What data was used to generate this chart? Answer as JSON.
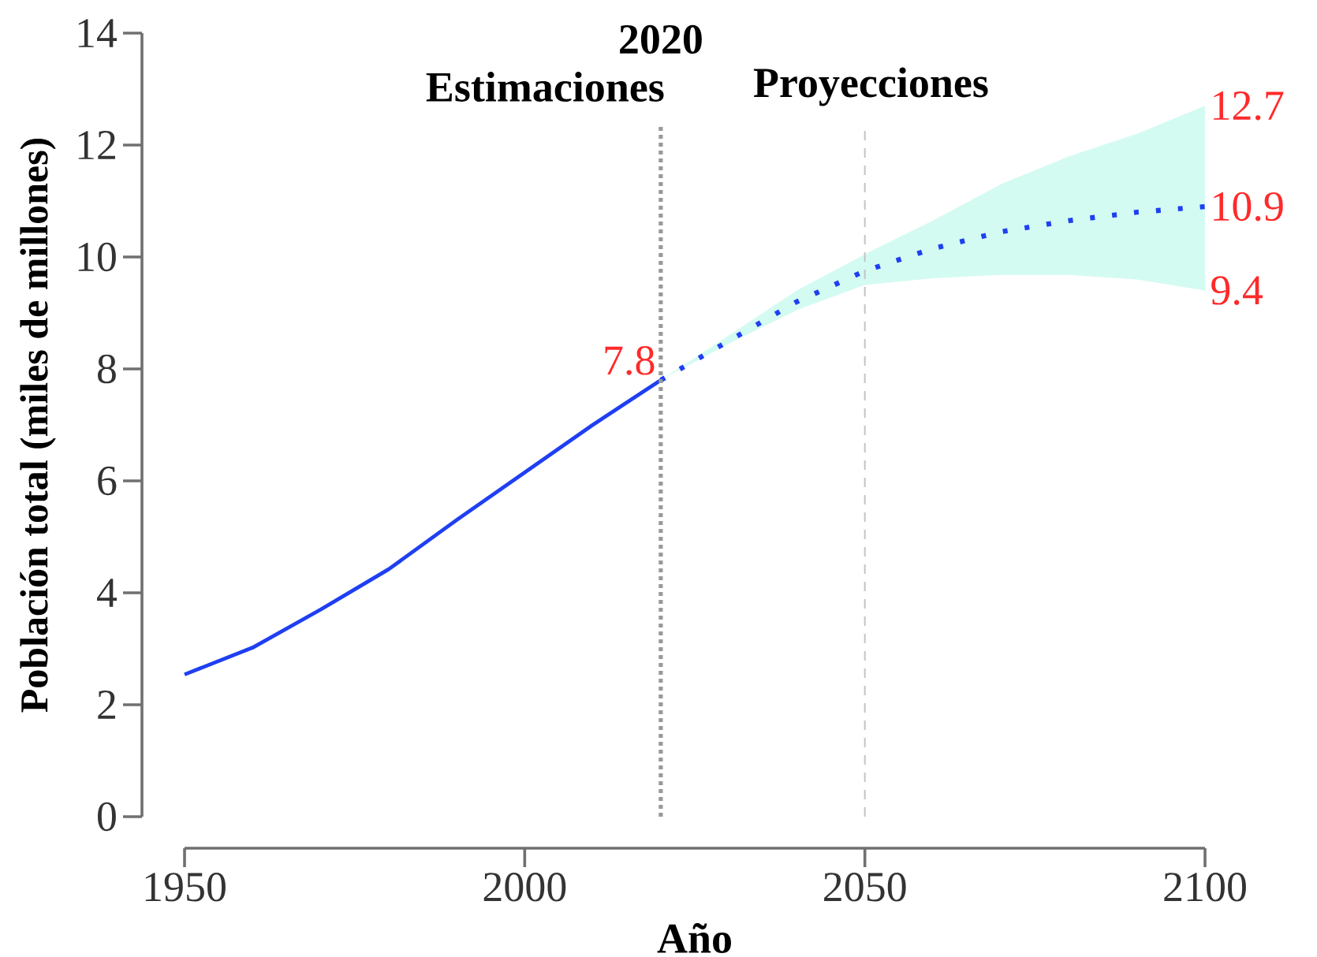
{
  "chart_data": {
    "type": "line",
    "xlabel": "Año",
    "ylabel": "Población total (miles de millones)",
    "xlim": [
      1950,
      2100
    ],
    "xticks": [
      1950,
      2000,
      2050,
      2100
    ],
    "ylim": [
      0,
      14
    ],
    "yticks": [
      0,
      2,
      4,
      6,
      8,
      10,
      12,
      14
    ],
    "marker": "none",
    "series": [
      {
        "color": "#1f3ff2",
        "line_style": "solid",
        "x": [
          1950,
          1960,
          1970,
          1980,
          1990,
          2000,
          2010,
          2020
        ],
        "values": [
          2.54,
          3.02,
          3.7,
          4.42,
          5.3,
          6.15,
          7.0,
          7.8
        ],
        "value_labels": [
          null,
          null,
          null,
          null,
          null,
          null,
          null,
          "7.8"
        ]
      },
      {
        "color": "#1f3ff2",
        "line_style": "dotted",
        "x": [
          2020,
          2030,
          2040,
          2050,
          2060,
          2070,
          2080,
          2090,
          2100
        ],
        "values": [
          7.8,
          8.5,
          9.2,
          9.75,
          10.15,
          10.45,
          10.65,
          10.8,
          10.9
        ],
        "lower": [
          7.8,
          8.45,
          9.05,
          9.5,
          9.62,
          9.68,
          9.68,
          9.6,
          9.4
        ],
        "upper": [
          7.8,
          8.6,
          9.4,
          10.05,
          10.65,
          11.3,
          11.8,
          12.2,
          12.7
        ],
        "value_labels": [
          null,
          null,
          null,
          null,
          null,
          null,
          null,
          null,
          "10.9"
        ]
      }
    ],
    "ref_lines": [
      {
        "axis": "x",
        "value": 2020,
        "label": "2020",
        "color": "#999999",
        "line_style": "dotted"
      },
      {
        "axis": "x",
        "value": 2050,
        "color": "#c4c4c4",
        "line_style": "dashed"
      }
    ],
    "annotations": [
      "Estimaciones",
      "Proyecciones",
      {
        "text": "12.7",
        "x": 2100,
        "y": 12.7
      },
      {
        "text": "9.4",
        "x": 2100,
        "y": 9.4
      }
    ]
  }
}
